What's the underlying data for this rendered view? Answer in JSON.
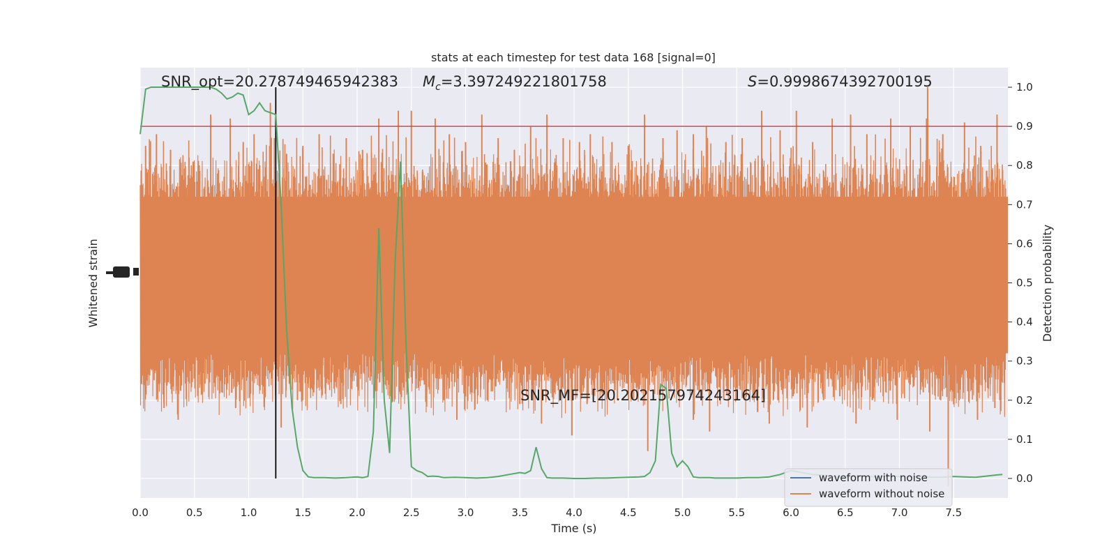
{
  "chart_data": {
    "type": "line",
    "title": "stats at each timestep for test data 168 [signal=0]",
    "xlabel": "Time (s)",
    "ylabel_left": "Whitened strain",
    "ylabel_right": "Detection probability",
    "xlim": [
      0,
      8
    ],
    "ylim_right": [
      -0.05,
      1.05
    ],
    "x_ticks": [
      "0.0",
      "0.5",
      "1.0",
      "1.5",
      "2.0",
      "2.5",
      "3.0",
      "3.5",
      "4.0",
      "4.5",
      "5.0",
      "5.5",
      "6.0",
      "6.5",
      "7.0",
      "7.5"
    ],
    "y_ticks_right": [
      "0.0",
      "0.1",
      "0.2",
      "0.3",
      "0.4",
      "0.5",
      "0.6",
      "0.7",
      "0.8",
      "0.9",
      "1.0"
    ],
    "grid": true,
    "legend_position": "lower-right",
    "annotations": {
      "snr_opt": "SNR_opt=20.278749465942383",
      "mc_symbol": "M",
      "mc_sub": "c",
      "mc_value": "=3.397249221801758",
      "s_symbol": "S",
      "s_value": "=0.9998674392700195",
      "snr_mf": "SNR_MF=[20.202157974243164]"
    },
    "series": [
      {
        "name": "waveform with noise",
        "color": "#4c72b0"
      },
      {
        "name": "waveform without noise",
        "color": "#dd8452"
      }
    ],
    "detection_probability": {
      "color": "#55a868",
      "x": [
        0.0,
        0.05,
        0.1,
        0.15,
        0.2,
        0.25,
        0.3,
        0.35,
        0.4,
        0.45,
        0.5,
        0.55,
        0.6,
        0.65,
        0.7,
        0.75,
        0.8,
        0.85,
        0.9,
        0.95,
        1.0,
        1.05,
        1.1,
        1.15,
        1.2,
        1.25,
        1.3,
        1.35,
        1.4,
        1.45,
        1.5,
        1.55,
        1.6,
        1.7,
        1.8,
        1.9,
        2.0,
        2.05,
        2.1,
        2.15,
        2.2,
        2.25,
        2.3,
        2.35,
        2.4,
        2.45,
        2.5,
        2.55,
        2.6,
        2.65,
        2.7,
        2.75,
        2.8,
        2.9,
        3.0,
        3.1,
        3.2,
        3.3,
        3.4,
        3.5,
        3.55,
        3.6,
        3.65,
        3.7,
        3.75,
        3.8,
        3.9,
        4.0,
        4.1,
        4.2,
        4.3,
        4.4,
        4.5,
        4.6,
        4.65,
        4.7,
        4.75,
        4.8,
        4.85,
        4.9,
        4.95,
        5.0,
        5.05,
        5.1,
        5.15,
        5.2,
        5.25,
        5.3,
        5.4,
        5.5,
        5.6,
        5.7,
        5.8,
        5.9,
        6.0,
        6.1,
        6.2,
        6.3,
        6.4,
        6.5,
        6.6,
        6.7,
        6.8,
        6.9,
        7.0,
        7.1,
        7.2,
        7.3,
        7.4,
        7.5,
        7.6,
        7.7,
        7.8,
        7.9,
        7.95
      ],
      "y": [
        0.88,
        0.995,
        1.0,
        1.0,
        1.0,
        1.0,
        1.0,
        1.0,
        1.0,
        1.0,
        1.0,
        1.0,
        1.0,
        1.0,
        0.995,
        0.985,
        0.97,
        0.975,
        0.985,
        0.98,
        0.93,
        0.94,
        0.96,
        0.94,
        0.935,
        0.93,
        0.7,
        0.38,
        0.18,
        0.08,
        0.02,
        0.004,
        0.002,
        0.002,
        0.001,
        0.002,
        0.004,
        0.002,
        0.005,
        0.12,
        0.64,
        0.2,
        0.065,
        0.55,
        0.81,
        0.35,
        0.03,
        0.02,
        0.015,
        0.005,
        0.006,
        0.005,
        0.002,
        0.003,
        0.002,
        0.001,
        0.002,
        0.005,
        0.01,
        0.015,
        0.013,
        0.02,
        0.08,
        0.025,
        0.002,
        0.001,
        0.001,
        0.0,
        0.0,
        0.001,
        0.001,
        0.002,
        0.003,
        0.004,
        0.005,
        0.015,
        0.045,
        0.24,
        0.23,
        0.065,
        0.03,
        0.045,
        0.03,
        0.004,
        0.002,
        0.002,
        0.002,
        0.001,
        0.001,
        0.001,
        0.002,
        0.002,
        0.004,
        0.01,
        0.02,
        0.015,
        0.01,
        0.008,
        0.005,
        0.004,
        0.006,
        0.005,
        0.004,
        0.006,
        0.005,
        0.004,
        0.005,
        0.003,
        0.003,
        0.005,
        0.004,
        0.003,
        0.006,
        0.009,
        0.01
      ]
    },
    "threshold": {
      "value": 0.9,
      "color": "#c44e52"
    },
    "marker_time": 1.25,
    "waveform_without_noise": {
      "color": "#dd8452",
      "range": [
        -0.8,
        1.0
      ],
      "upper_peaks": [
        [
          0.05,
          0.85
        ],
        [
          0.15,
          0.88
        ],
        [
          0.28,
          0.84
        ],
        [
          0.45,
          0.82
        ],
        [
          0.65,
          0.93
        ],
        [
          0.83,
          0.92
        ],
        [
          0.95,
          0.86
        ],
        [
          1.05,
          0.88
        ],
        [
          1.2,
          0.96
        ],
        [
          1.35,
          0.83
        ],
        [
          1.5,
          0.85
        ],
        [
          1.65,
          0.88
        ],
        [
          1.78,
          0.83
        ],
        [
          1.9,
          0.87
        ],
        [
          2.05,
          0.84
        ],
        [
          2.2,
          0.92
        ],
        [
          2.38,
          0.94
        ],
        [
          2.5,
          0.94
        ],
        [
          2.72,
          0.92
        ],
        [
          2.85,
          0.88
        ],
        [
          3.0,
          0.86
        ],
        [
          3.15,
          0.93
        ],
        [
          3.3,
          0.87
        ],
        [
          3.45,
          0.84
        ],
        [
          3.6,
          0.9
        ],
        [
          3.75,
          0.93
        ],
        [
          3.9,
          0.87
        ],
        [
          4.05,
          0.86
        ],
        [
          4.15,
          0.88
        ],
        [
          4.35,
          0.86
        ],
        [
          4.5,
          0.85
        ],
        [
          4.65,
          0.93
        ],
        [
          4.82,
          0.87
        ],
        [
          4.95,
          0.89
        ],
        [
          5.1,
          0.88
        ],
        [
          5.22,
          0.9
        ],
        [
          5.4,
          0.86
        ],
        [
          5.55,
          0.87
        ],
        [
          5.73,
          0.94
        ],
        [
          5.9,
          0.89
        ],
        [
          6.05,
          0.94
        ],
        [
          6.2,
          0.86
        ],
        [
          6.38,
          0.92
        ],
        [
          6.55,
          0.93
        ],
        [
          6.7,
          0.88
        ],
        [
          6.92,
          0.92
        ],
        [
          7.1,
          0.9
        ],
        [
          7.25,
          0.92
        ],
        [
          7.26,
          1.0
        ],
        [
          7.4,
          0.88
        ],
        [
          7.6,
          0.91
        ],
        [
          7.75,
          0.85
        ],
        [
          7.9,
          0.93
        ]
      ],
      "lower_peaks": [
        [
          0.12,
          0.28
        ],
        [
          0.22,
          0.18
        ],
        [
          0.35,
          0.15
        ],
        [
          0.55,
          0.24
        ],
        [
          0.75,
          0.22
        ],
        [
          0.88,
          0.18
        ],
        [
          1.1,
          0.25
        ],
        [
          1.3,
          0.13
        ],
        [
          1.45,
          0.2
        ],
        [
          1.6,
          0.22
        ],
        [
          1.72,
          0.26
        ],
        [
          1.85,
          0.19
        ],
        [
          1.95,
          0.23
        ],
        [
          2.12,
          0.25
        ],
        [
          2.3,
          0.21
        ],
        [
          2.45,
          0.27
        ],
        [
          2.62,
          0.24
        ],
        [
          2.8,
          0.2
        ],
        [
          2.92,
          0.15
        ],
        [
          3.05,
          0.22
        ],
        [
          3.2,
          0.2
        ],
        [
          3.35,
          0.25
        ],
        [
          3.5,
          0.19
        ],
        [
          3.62,
          0.2
        ],
        [
          3.7,
          0.14
        ],
        [
          3.88,
          0.22
        ],
        [
          3.98,
          0.11
        ],
        [
          4.12,
          0.19
        ],
        [
          4.25,
          0.22
        ],
        [
          4.4,
          0.2
        ],
        [
          4.55,
          0.26
        ],
        [
          4.68,
          0.07
        ],
        [
          4.85,
          0.25
        ],
        [
          4.95,
          0.22
        ],
        [
          5.1,
          0.15
        ],
        [
          5.25,
          0.12
        ],
        [
          5.38,
          0.2
        ],
        [
          5.55,
          0.25
        ],
        [
          5.65,
          0.2
        ],
        [
          5.8,
          0.14
        ],
        [
          5.88,
          0.2
        ],
        [
          6.02,
          0.21
        ],
        [
          6.15,
          0.13
        ],
        [
          6.3,
          0.2
        ],
        [
          6.45,
          0.21
        ],
        [
          6.6,
          0.14
        ],
        [
          6.75,
          0.2
        ],
        [
          6.85,
          0.21
        ],
        [
          6.98,
          0.15
        ],
        [
          7.1,
          0.24
        ],
        [
          7.22,
          0.22
        ],
        [
          7.28,
          0.12
        ],
        [
          7.38,
          0.2
        ],
        [
          7.45,
          -0.02
        ],
        [
          7.55,
          0.2
        ],
        [
          7.72,
          0.15
        ],
        [
          7.88,
          0.18
        ]
      ]
    }
  }
}
